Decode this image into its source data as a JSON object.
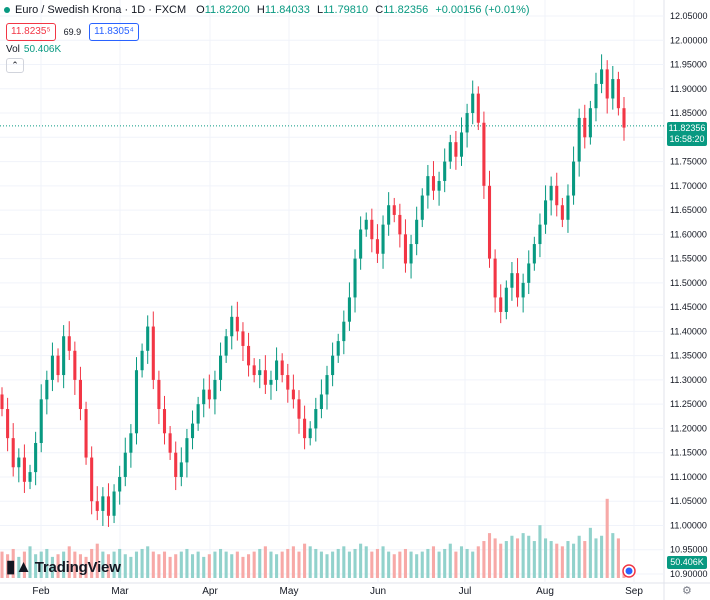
{
  "header": {
    "title": "Euro / Swedish Krona · 1D · FXCM",
    "ohlc": {
      "o_label": "O",
      "o": "11.82200",
      "h_label": "H",
      "h": "11.84033",
      "l_label": "L",
      "l": "11.79810",
      "c_label": "C",
      "c": "11.82356",
      "change": "+0.00156 (+0.01%)"
    },
    "status_color": "#089981"
  },
  "quotes": {
    "sell": "11.8235⁵",
    "spread": "69.9",
    "buy": "11.8305⁴"
  },
  "volume": {
    "label": "Vol",
    "value": "50.406K"
  },
  "collapse_icon": "chevron-up-icon",
  "logo": {
    "text": "TradingView",
    "icon": "tradingview-logo-icon"
  },
  "current_price": {
    "price": "11.82356",
    "countdown": "16:58:20"
  },
  "volume_badge": "50.406K",
  "settings_icon": "gear-icon",
  "colors": {
    "up": "#089981",
    "down": "#f23645",
    "up_vol": "#92d2cc",
    "down_vol": "#f7a9a7",
    "grid": "#f0f3fa"
  },
  "chart_data": {
    "type": "candlestick",
    "y_axis": {
      "ticks": [
        "12.05000",
        "12.00000",
        "11.95000",
        "11.90000",
        "11.85000",
        "11.80000",
        "11.75000",
        "11.70000",
        "11.65000",
        "11.60000",
        "11.55000",
        "11.50000",
        "11.45000",
        "11.40000",
        "11.35000",
        "11.30000",
        "11.25000",
        "11.20000",
        "11.15000",
        "11.10000",
        "11.05000",
        "11.00000",
        "10.95000",
        "10.90000"
      ],
      "range": [
        10.9,
        12.05
      ]
    },
    "x_axis": {
      "labels": [
        "Feb",
        "Mar",
        "Apr",
        "May",
        "Jun",
        "Jul",
        "Aug",
        "Sep"
      ]
    },
    "closes": [
      11.24,
      11.18,
      11.12,
      11.14,
      11.09,
      11.11,
      11.17,
      11.26,
      11.3,
      11.35,
      11.31,
      11.39,
      11.36,
      11.3,
      11.24,
      11.14,
      11.05,
      11.03,
      11.06,
      11.02,
      11.07,
      11.1,
      11.15,
      11.19,
      11.32,
      11.36,
      11.41,
      11.3,
      11.24,
      11.19,
      11.15,
      11.1,
      11.13,
      11.18,
      11.21,
      11.25,
      11.28,
      11.26,
      11.3,
      11.35,
      11.39,
      11.43,
      11.4,
      11.37,
      11.33,
      11.31,
      11.32,
      11.29,
      11.3,
      11.34,
      11.31,
      11.28,
      11.26,
      11.22,
      11.18,
      11.2,
      11.24,
      11.27,
      11.31,
      11.35,
      11.38,
      11.42,
      11.47,
      11.55,
      11.61,
      11.63,
      11.59,
      11.56,
      11.62,
      11.66,
      11.64,
      11.6,
      11.54,
      11.58,
      11.63,
      11.68,
      11.72,
      11.69,
      11.71,
      11.75,
      11.79,
      11.76,
      11.81,
      11.85,
      11.89,
      11.83,
      11.7,
      11.55,
      11.47,
      11.44,
      11.49,
      11.52,
      11.47,
      11.5,
      11.54,
      11.58,
      11.62,
      11.67,
      11.7,
      11.66,
      11.63,
      11.68,
      11.75,
      11.84,
      11.8,
      11.86,
      11.91,
      11.94,
      11.88,
      11.92,
      11.86,
      11.82
    ],
    "volumes": [
      1.0,
      0.9,
      1.1,
      0.8,
      1.0,
      1.2,
      0.9,
      1.0,
      1.1,
      0.8,
      0.9,
      1.0,
      1.2,
      1.0,
      0.9,
      0.8,
      1.1,
      1.3,
      1.0,
      0.9,
      1.0,
      1.1,
      0.9,
      0.8,
      1.0,
      1.1,
      1.2,
      1.0,
      0.9,
      1.0,
      0.8,
      0.9,
      1.0,
      1.1,
      0.9,
      1.0,
      0.8,
      0.9,
      1.0,
      1.1,
      1.0,
      0.9,
      1.0,
      0.8,
      0.9,
      1.0,
      1.1,
      1.2,
      1.0,
      0.9,
      1.0,
      1.1,
      1.2,
      1.0,
      1.3,
      1.2,
      1.1,
      1.0,
      0.9,
      1.0,
      1.1,
      1.2,
      1.0,
      1.1,
      1.3,
      1.2,
      1.0,
      1.1,
      1.2,
      1.0,
      0.9,
      1.0,
      1.1,
      1.0,
      0.9,
      1.0,
      1.1,
      1.2,
      1.0,
      1.1,
      1.3,
      1.0,
      1.2,
      1.1,
      1.0,
      1.2,
      1.4,
      1.7,
      1.5,
      1.3,
      1.4,
      1.6,
      1.5,
      1.7,
      1.6,
      1.4,
      2.0,
      1.5,
      1.4,
      1.3,
      1.2,
      1.4,
      1.3,
      1.6,
      1.4,
      1.9,
      1.5,
      1.6,
      3.0,
      1.7,
      1.5,
      0.3
    ]
  }
}
